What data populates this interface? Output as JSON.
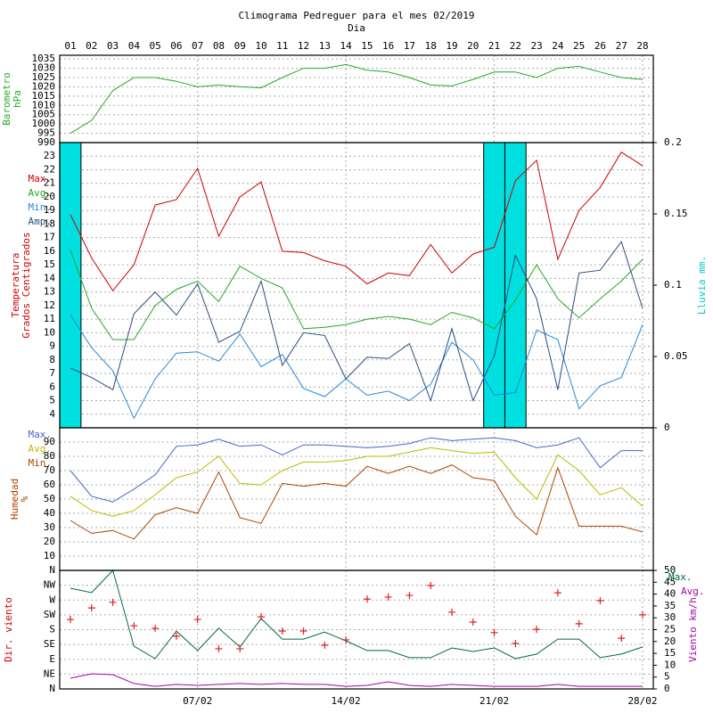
{
  "chart_data": [
    {
      "type": "line",
      "title": "Climograma Pedreguer para el mes 02/2019",
      "subtitle": "Dia",
      "categories": [
        "01",
        "02",
        "03",
        "04",
        "05",
        "06",
        "07",
        "08",
        "09",
        "10",
        "11",
        "12",
        "13",
        "14",
        "15",
        "16",
        "17",
        "18",
        "19",
        "20",
        "21",
        "22",
        "23",
        "24",
        "25",
        "26",
        "27",
        "28"
      ],
      "ylabel": [
        "Barometro",
        "hPa"
      ],
      "ylabel_color": "#22aa22",
      "ylim": [
        990,
        1037
      ],
      "yticks": [
        990,
        995,
        1000,
        1005,
        1010,
        1015,
        1020,
        1025,
        1030,
        1035
      ],
      "grid": true,
      "series": [
        {
          "color": "#22aa22",
          "values": [
            995,
            1002,
            1018,
            1025,
            1025,
            1023,
            1020,
            1021,
            1020,
            1019.5,
            1025,
            1030,
            1030,
            1032,
            1029,
            1028,
            1025,
            1021,
            1020.5,
            1024,
            1028,
            1028,
            1025,
            1030,
            1031,
            1028,
            1025,
            1024
          ]
        }
      ]
    },
    {
      "type": "line",
      "ylabel": [
        "Temperatura",
        "Grados Centigrados"
      ],
      "ylabel_color": "#cc0000",
      "y2label": "Lluvia mm.",
      "y2label_color": "#00cccc",
      "ylim": [
        3,
        24
      ],
      "yticks": [
        4,
        5,
        6,
        7,
        8,
        9,
        10,
        11,
        12,
        13,
        14,
        15,
        16,
        17,
        18,
        19,
        20,
        21,
        22,
        23
      ],
      "grid": true,
      "y2lim": [
        0,
        0.2
      ],
      "y2ticks": [
        0,
        0.05,
        0.1,
        0.15,
        0.2
      ],
      "legend": "left",
      "series": [
        {
          "name": "Lluvia",
          "type": "bar",
          "axis": "y2",
          "color": "#00e0e0",
          "values": [
            0.2,
            0,
            0,
            0,
            0,
            0,
            0,
            0,
            0,
            0,
            0,
            0,
            0,
            0,
            0,
            0,
            0,
            0,
            0,
            0,
            0.2,
            0.2,
            0,
            0,
            0,
            0,
            0,
            0
          ]
        },
        {
          "name": "Max.",
          "color": "#cc0000",
          "values": [
            18.7,
            15.5,
            13.1,
            15.0,
            19.4,
            19.8,
            22.1,
            17.1,
            20.0,
            21.1,
            16.0,
            15.9,
            15.3,
            14.9,
            13.6,
            14.4,
            14.2,
            16.5,
            14.4,
            15.8,
            16.3,
            21.2,
            22.7,
            15.4,
            19.0,
            20.7,
            23.3,
            22.3
          ]
        },
        {
          "name": "Avg.",
          "color": "#22aa22",
          "values": [
            16.1,
            11.8,
            9.5,
            9.5,
            12.0,
            13.2,
            13.8,
            12.3,
            14.9,
            14.0,
            13.3,
            10.3,
            10.4,
            10.6,
            11.0,
            11.2,
            11.0,
            10.6,
            11.5,
            11.1,
            10.3,
            12.4,
            15.0,
            12.5,
            11.1,
            12.5,
            13.8,
            15.4
          ]
        },
        {
          "name": "Min.",
          "color": "#2288dd",
          "values": [
            11.3,
            8.9,
            7.2,
            3.7,
            6.6,
            8.5,
            8.6,
            7.9,
            9.9,
            7.5,
            8.4,
            5.9,
            5.3,
            6.6,
            5.4,
            5.7,
            5.0,
            6.2,
            9.3,
            8.0,
            5.4,
            5.6,
            10.2,
            9.5,
            4.4,
            6.1,
            6.7,
            10.6
          ]
        },
        {
          "name": "Amp.",
          "color": "#2a4a80",
          "values": [
            7.4,
            6.7,
            5.8,
            11.4,
            13.0,
            11.3,
            13.6,
            9.3,
            10.1,
            13.8,
            7.6,
            10.0,
            9.8,
            6.6,
            8.2,
            8.1,
            9.2,
            5.0,
            10.3,
            5.0,
            8.3,
            15.7,
            12.5,
            5.8,
            14.4,
            14.6,
            16.7,
            11.8
          ]
        }
      ]
    },
    {
      "type": "line",
      "ylabel": [
        "Humedad",
        "%"
      ],
      "ylabel_color": "#aa4400",
      "ylim": [
        0,
        100
      ],
      "yticks": [
        10,
        20,
        30,
        40,
        50,
        60,
        70,
        80,
        90
      ],
      "grid": true,
      "legend": "left",
      "series": [
        {
          "name": "Max.",
          "color": "#4466cc",
          "values": [
            70,
            52,
            48,
            57,
            67,
            87,
            88,
            92,
            87,
            88,
            81,
            88,
            88,
            87,
            86,
            87,
            89,
            93,
            91,
            92,
            93,
            91,
            86,
            88,
            93,
            72,
            84,
            84
          ]
        },
        {
          "name": "Avg.",
          "color": "#bbbb00",
          "values": [
            52,
            42,
            38,
            42,
            53,
            65,
            69,
            80,
            61,
            60,
            70,
            76,
            76,
            77,
            80,
            80,
            83,
            86,
            84,
            82,
            83,
            65,
            50,
            81,
            70,
            53,
            58,
            45
          ]
        },
        {
          "name": "Min.",
          "color": "#aa4400",
          "values": [
            35,
            26,
            28,
            22,
            39,
            44,
            40,
            69,
            37,
            33,
            61,
            59,
            61,
            59,
            73,
            68,
            73,
            68,
            74,
            65,
            63,
            38,
            25,
            72,
            31,
            31,
            31,
            27
          ]
        }
      ]
    },
    {
      "type": "line",
      "ylabel": [
        "Dir. viento"
      ],
      "ylabel_color": "#cc0000",
      "y2label": "Viento km/h",
      "y2label_color": "#aa00aa",
      "ylim": [
        0,
        360
      ],
      "yticks": [
        {
          "value": 0,
          "label": "N"
        },
        {
          "value": 45,
          "label": "NE"
        },
        {
          "value": 90,
          "label": "E"
        },
        {
          "value": 135,
          "label": "SE"
        },
        {
          "value": 180,
          "label": "S"
        },
        {
          "value": 225,
          "label": "SW"
        },
        {
          "value": 270,
          "label": "W"
        },
        {
          "value": 315,
          "label": "NW"
        },
        {
          "value": 360,
          "label": "N"
        }
      ],
      "grid": true,
      "y2lim": [
        0,
        50
      ],
      "y2ticks": [
        0,
        5,
        10,
        15,
        20,
        25,
        30,
        35,
        40,
        45,
        50
      ],
      "legend": "right",
      "xtick_labels": [
        "07/02",
        "14/02",
        "21/02",
        "28/02"
      ],
      "series": [
        {
          "type": "scatter",
          "color": "#dd2222",
          "values": [
            211,
            246,
            263,
            192,
            184,
            160,
            211,
            122,
            122,
            219,
            176,
            176,
            133,
            149,
            273,
            279,
            284,
            314,
            233,
            203,
            171,
            138,
            181,
            292,
            198,
            268,
            154,
            225
          ]
        },
        {
          "name": "Max.",
          "axis": "y2",
          "color": "#006644",
          "values": [
            42.5,
            40.6,
            50,
            18,
            12.8,
            24.4,
            16.2,
            25.6,
            17.7,
            29.7,
            21,
            21,
            24,
            20.3,
            16.2,
            16.2,
            13.2,
            13.2,
            17.3,
            15.8,
            17.3,
            12.8,
            14.7,
            21,
            21,
            13.2,
            14.7,
            17.7
          ]
        },
        {
          "name": "Avg.",
          "axis": "y2",
          "color": "#aa00aa",
          "values": [
            4.5,
            6.4,
            6,
            2.3,
            1.1,
            1.9,
            1.5,
            1.9,
            2.3,
            1.9,
            2.3,
            1.9,
            1.9,
            1.1,
            1.5,
            3,
            1.5,
            1.1,
            1.9,
            1.5,
            1.1,
            1.1,
            1.1,
            1.9,
            1.1,
            1.1,
            1.1,
            1.1
          ]
        }
      ]
    }
  ]
}
